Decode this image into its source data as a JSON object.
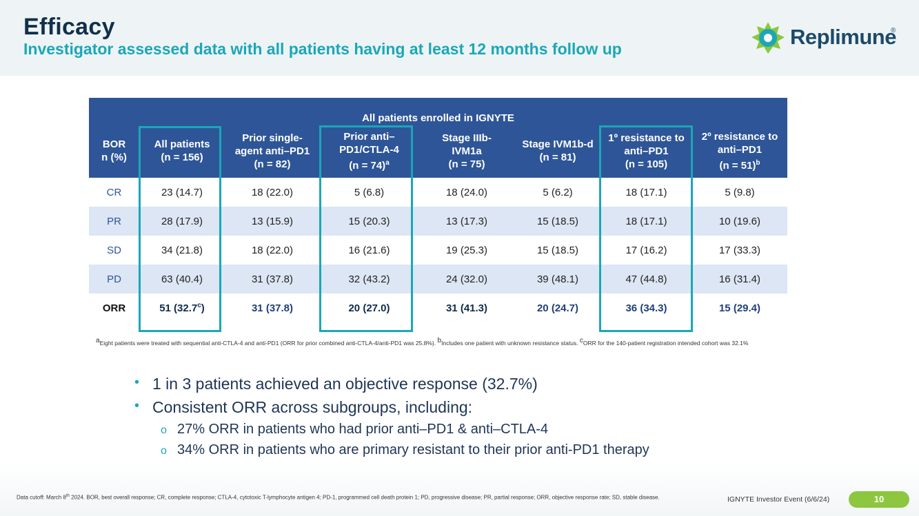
{
  "header": {
    "title": "Efficacy",
    "subtitle": "Investigator assessed data with all patients having at least 12 months follow up",
    "logo_text": "Replimune",
    "logo_reg": "®"
  },
  "table": {
    "banner": "All patients enrolled in IGNYTE",
    "columns": [
      {
        "l1": "BOR",
        "l2": "n (%)",
        "l3": "",
        "sup": ""
      },
      {
        "l1": "All patients",
        "l2": "(n = 156)",
        "l3": "",
        "sup": ""
      },
      {
        "l1": "Prior single-",
        "l2": "agent anti–PD1",
        "l3": "(n = 82)",
        "sup": ""
      },
      {
        "l1": "Prior anti–",
        "l2": "PD1/CTLA-4",
        "l3": "(n = 74)",
        "sup": "a"
      },
      {
        "l1": "Stage IIIb-",
        "l2": "IVM1a",
        "l3": "(n = 75)",
        "sup": ""
      },
      {
        "l1": "Stage IVM1b-d",
        "l2": "(n = 81)",
        "l3": "",
        "sup": ""
      },
      {
        "l1": "1º resistance to",
        "l2": "anti–PD1",
        "l3": "(n = 105)",
        "sup": ""
      },
      {
        "l1": "2º resistance to",
        "l2": "anti–PD1",
        "l3": "(n = 51)",
        "sup": "b"
      }
    ],
    "rows": [
      [
        "CR",
        "23 (14.7)",
        "18 (22.0)",
        "5 (6.8)",
        "18 (24.0)",
        "5 (6.2)",
        "18 (17.1)",
        "5 (9.8)"
      ],
      [
        "PR",
        "28 (17.9)",
        "13 (15.9)",
        "15 (20.3)",
        "13 (17.3)",
        "15 (18.5)",
        "18 (17.1)",
        "10 (19.6)"
      ],
      [
        "SD",
        "34 (21.8)",
        "18 (22.0)",
        "16 (21.6)",
        "19 (25.3)",
        "15 (18.5)",
        "17 (16.2)",
        "17 (33.3)"
      ],
      [
        "PD",
        "63 (40.4)",
        "31 (37.8)",
        "32 (43.2)",
        "24 (32.0)",
        "39 (48.1)",
        "47 (44.8)",
        "16 (31.4)"
      ]
    ],
    "orr": {
      "label": "ORR",
      "all": "51 (32.7",
      "all_sup": "c",
      "all_close": ")",
      "values": [
        "31 (37.8)",
        "20 (27.0)",
        "31 (41.3)",
        "20 (24.7)",
        "36 (34.3)",
        "15 (29.4)"
      ]
    }
  },
  "footnote": {
    "a_mark": "a",
    "a_text": "Eight patients were treated with sequential anti-CTLA-4 and anti-PD1 (ORR for prior combined anti-CTLA-4/anti-PD1 was 25.8%).",
    "b_mark": "b",
    "b_text": "Includes one patient with unknown resistance status.",
    "c_mark": "c",
    "c_text": "ORR for the 140-patient registration intended cohort was 32.1%"
  },
  "bullets": {
    "b1": "1 in 3 patients achieved an objective response (32.7%)",
    "b2": "Consistent ORR across subgroups, including:",
    "s1": "27% ORR in patients who had prior anti–PD1 & anti–CTLA-4",
    "s2": "34% ORR in patients who are primary resistant to their prior anti-PD1 therapy"
  },
  "footer": {
    "cutoff_pre": "Data cutoff: March 8",
    "cutoff_sup": "th",
    "cutoff_post": " 2024. BOR, best overall response; CR, complete response; CTLA-4, cytotoxic T-lymphocyte antigen 4; PD-1, programmed cell death protein 1; PD, progressive disease; PR, partial response; ORR, objective response rate; SD, stable disease.",
    "event": "IGNYTE Investor Event (6/6/24)",
    "page": "10"
  },
  "colors": {
    "header_blue": "#2e5597",
    "teal": "#1aa7b8",
    "navy": "#12304a",
    "alt_row": "#dce6f4",
    "badge_green": "#8dc63f"
  }
}
